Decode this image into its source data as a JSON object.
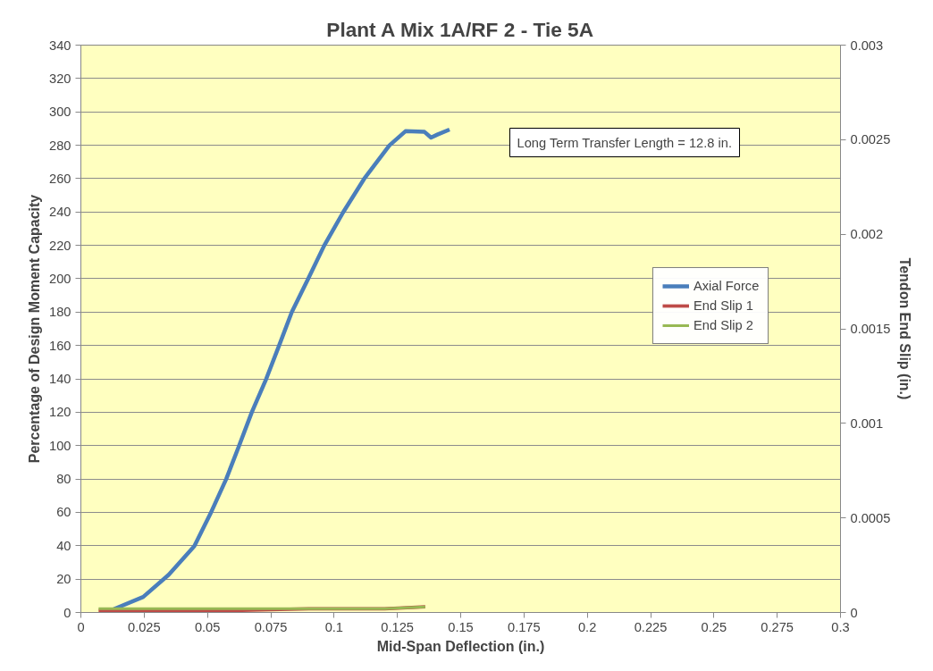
{
  "chart_data": {
    "type": "line",
    "title": "Plant A Mix 1A/RF 2 - Tie 5A",
    "xlabel": "Mid-Span Deflection (in.)",
    "ylabel": "Percentage of Design Moment Capacity",
    "y2label": "Tendon End Slip (in.)",
    "annotations": [
      "Long Term Transfer Length = 12.8 in."
    ],
    "series": [
      {
        "name": "Axial Force",
        "color": "#4a7ebb",
        "x": [
          0.013,
          0.0246,
          0.0347,
          0.0448,
          0.0511,
          0.0574,
          0.0625,
          0.0675,
          0.0732,
          0.0783,
          0.0833,
          0.0896,
          0.096,
          0.1035,
          0.1118,
          0.1218,
          0.1282,
          0.1357,
          0.1383,
          0.1408,
          0.1456
        ],
        "values": [
          2,
          9.3,
          22.6,
          39.8,
          59,
          80,
          100,
          120,
          140,
          160,
          180,
          199.5,
          219.6,
          239.6,
          259.7,
          279.8,
          288.4,
          288,
          284.6,
          286.4,
          289.4
        ]
      },
      {
        "name": "End Slip 1",
        "color": "#be4b48",
        "axis": "y2",
        "x": [
          0.007,
          0.03,
          0.06,
          0.09,
          0.12,
          0.136
        ],
        "values": [
          1e-05,
          1e-05,
          1e-05,
          2e-05,
          2e-05,
          3e-05
        ]
      },
      {
        "name": "End Slip 2",
        "color": "#98b954",
        "axis": "y2",
        "x": [
          0.007,
          0.015,
          0.03,
          0.06,
          0.09,
          0.12,
          0.136
        ],
        "values": [
          2e-05,
          2e-05,
          2e-05,
          2e-05,
          2e-05,
          2e-05,
          3e-05
        ]
      }
    ],
    "xlim": [
      0,
      0.3
    ],
    "xticks": [
      0,
      0.025,
      0.05,
      0.075,
      0.1,
      0.125,
      0.15,
      0.175,
      0.2,
      0.225,
      0.25,
      0.275,
      0.3
    ],
    "ylim": [
      0,
      340
    ],
    "yticks": [
      0,
      20,
      40,
      60,
      80,
      100,
      120,
      140,
      160,
      180,
      200,
      220,
      240,
      260,
      280,
      300,
      320,
      340
    ],
    "y2lim": [
      0,
      0.003
    ],
    "y2ticks": [
      0,
      0.0005,
      0.001,
      0.0015,
      0.002,
      0.0025,
      0.003
    ],
    "grid": "y",
    "legend": "right",
    "line_style": "solid",
    "marker": "none"
  }
}
